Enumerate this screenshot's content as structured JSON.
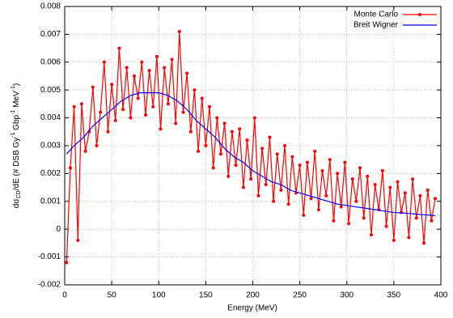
{
  "chart_data": {
    "type": "line",
    "x_label": "Energy (MeV)",
    "y_label": [
      "dσ",
      "CD",
      "/dE (# DSB Gy",
      "-1",
      " Gbp",
      "-1",
      " MeV",
      "-1",
      ")"
    ],
    "xlim": [
      0,
      400
    ],
    "xticks": [
      0,
      50,
      100,
      150,
      200,
      250,
      300,
      350,
      400
    ],
    "ylim": [
      -0.002,
      0.008
    ],
    "yticks": [
      -0.002,
      -0.001,
      0,
      0.001,
      0.002,
      0.003,
      0.004,
      0.005,
      0.006,
      0.007,
      0.008
    ],
    "grid": true,
    "legend": "top-right",
    "series": [
      {
        "name": "Monte Carlo",
        "color": "#ff0000",
        "markers": true,
        "x": [
          2,
          6,
          10,
          14,
          18,
          22,
          26,
          30,
          34,
          38,
          42,
          46,
          50,
          54,
          58,
          62,
          66,
          70,
          74,
          78,
          82,
          86,
          90,
          94,
          98,
          102,
          106,
          110,
          114,
          118,
          122,
          126,
          130,
          134,
          138,
          142,
          146,
          150,
          154,
          158,
          162,
          166,
          170,
          174,
          178,
          182,
          186,
          190,
          194,
          198,
          202,
          206,
          210,
          214,
          218,
          222,
          226,
          230,
          234,
          238,
          242,
          246,
          250,
          254,
          258,
          262,
          266,
          270,
          274,
          278,
          282,
          286,
          290,
          294,
          298,
          302,
          306,
          310,
          314,
          318,
          322,
          326,
          330,
          334,
          338,
          342,
          346,
          350,
          354,
          358,
          362,
          366,
          370,
          374,
          378,
          382,
          386,
          390,
          394
        ],
        "values": [
          -0.0012,
          0.0022,
          0.0044,
          -0.0004,
          0.0045,
          0.0028,
          0.0035,
          0.0051,
          0.003,
          0.0042,
          0.006,
          0.0035,
          0.0052,
          0.0039,
          0.0065,
          0.0043,
          0.0058,
          0.004,
          0.0055,
          0.0047,
          0.006,
          0.0041,
          0.0057,
          0.0044,
          0.0062,
          0.0036,
          0.0058,
          0.0045,
          0.0061,
          0.0038,
          0.0071,
          0.0042,
          0.0056,
          0.0035,
          0.005,
          0.0028,
          0.0047,
          0.003,
          0.0044,
          0.0022,
          0.004,
          0.0027,
          0.0038,
          0.0019,
          0.0035,
          0.0023,
          0.0036,
          0.0015,
          0.0032,
          0.0018,
          0.004,
          0.0012,
          0.0029,
          0.0016,
          0.0033,
          0.001,
          0.0027,
          0.0014,
          0.003,
          0.0009,
          0.0026,
          0.0013,
          0.0023,
          0.0005,
          0.0024,
          0.0011,
          0.0028,
          0.0007,
          0.0021,
          0.0012,
          0.0025,
          0.0003,
          0.002,
          0.0008,
          0.0024,
          0.0002,
          0.0018,
          0.001,
          0.0022,
          0.0004,
          0.0019,
          -0.0002,
          0.0016,
          0.0007,
          0.0021,
          0.0001,
          0.0015,
          -0.0004,
          0.0017,
          0.0006,
          0.0013,
          -0.0003,
          0.0018,
          0.0004,
          0.0012,
          -0.0005,
          0.0014,
          0.0003,
          0.0011
        ]
      },
      {
        "name": "Breit Wigner",
        "color": "#0000ff",
        "markers": false,
        "x": [
          2,
          10,
          20,
          30,
          40,
          50,
          60,
          70,
          80,
          90,
          100,
          110,
          120,
          130,
          140,
          150,
          160,
          170,
          180,
          190,
          200,
          210,
          220,
          230,
          240,
          250,
          260,
          270,
          280,
          290,
          300,
          310,
          320,
          330,
          340,
          350,
          360,
          370,
          380,
          390,
          394
        ],
        "values": [
          0.0027,
          0.003,
          0.0033,
          0.0037,
          0.004,
          0.0043,
          0.0046,
          0.0048,
          0.0049,
          0.0049,
          0.0049,
          0.0048,
          0.0046,
          0.0043,
          0.0039,
          0.0036,
          0.0033,
          0.0029,
          0.0026,
          0.0024,
          0.0021,
          0.0019,
          0.0017,
          0.0016,
          0.0014,
          0.0013,
          0.0012,
          0.0011,
          0.001,
          0.0009,
          0.00085,
          0.0008,
          0.00075,
          0.0007,
          0.00065,
          0.0006,
          0.00058,
          0.00055,
          0.00052,
          0.0005,
          0.00048
        ]
      }
    ]
  }
}
